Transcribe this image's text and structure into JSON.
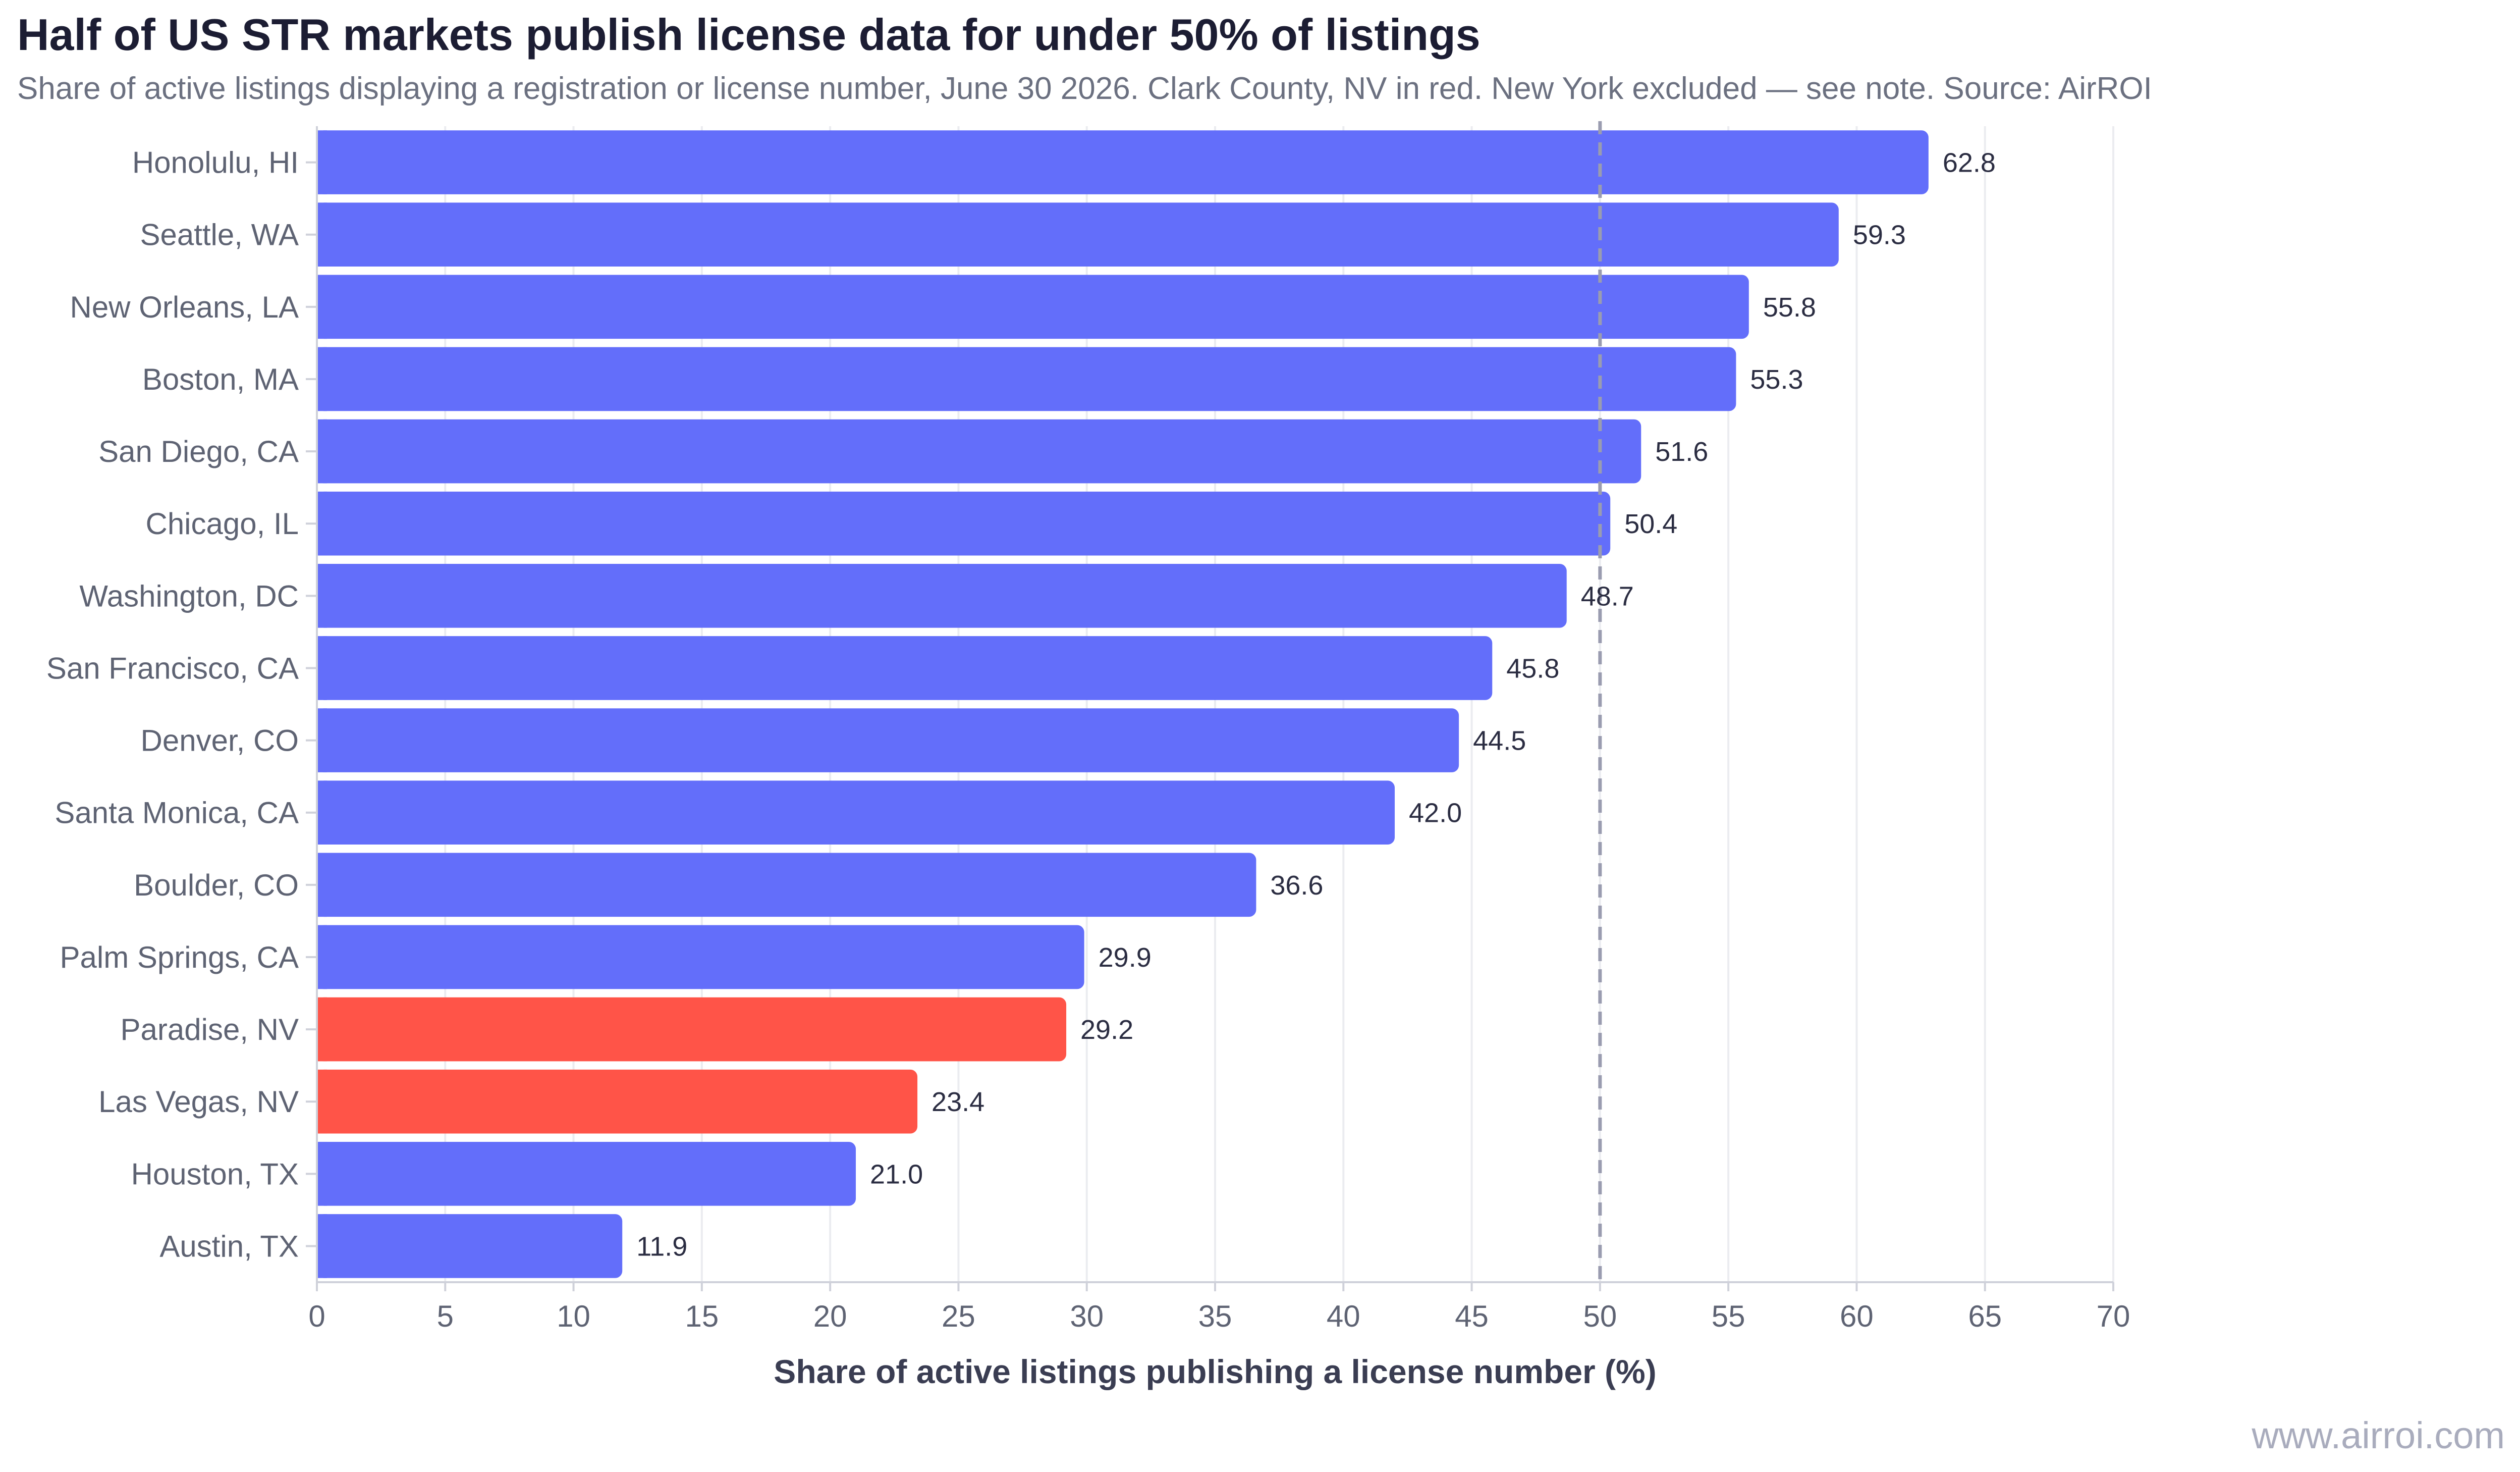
{
  "chart_data": {
    "type": "bar",
    "orientation": "horizontal",
    "title": "Half of US STR markets publish license data for under 50% of listings",
    "subtitle": "Share of active listings displaying a registration or license number, June 30 2026. Clark County, NV in red. New York excluded — see note. Source: AirROI",
    "xlabel": "Share of active listings publishing a license number (%)",
    "ylabel": "",
    "xlim": [
      0,
      70
    ],
    "xticks": [
      0,
      5,
      10,
      15,
      20,
      25,
      30,
      35,
      40,
      45,
      50,
      55,
      60,
      65,
      70
    ],
    "reference_line": {
      "value": 50,
      "style": "dashed",
      "color": "#9a9cb0"
    },
    "grid": "vertical",
    "colors": {
      "default": "#636efa",
      "highlight": "#ff5448"
    },
    "categories": [
      "Honolulu, HI",
      "Seattle, WA",
      "New Orleans, LA",
      "Boston, MA",
      "San Diego, CA",
      "Chicago, IL",
      "Washington, DC",
      "San Francisco, CA",
      "Denver, CO",
      "Santa Monica, CA",
      "Boulder, CO",
      "Palm Springs, CA",
      "Paradise, NV",
      "Las Vegas, NV",
      "Houston, TX",
      "Austin, TX"
    ],
    "values": [
      62.8,
      59.3,
      55.8,
      55.3,
      51.6,
      50.4,
      48.7,
      45.8,
      44.5,
      42.0,
      36.6,
      29.9,
      29.2,
      23.4,
      21.0,
      11.9
    ],
    "value_labels": [
      "62.8",
      "59.3",
      "55.8",
      "55.3",
      "51.6",
      "50.4",
      "48.7",
      "45.8",
      "44.5",
      "42.0",
      "36.6",
      "29.9",
      "29.2",
      "23.4",
      "21.0",
      "11.9"
    ],
    "highlighted": [
      "Paradise, NV",
      "Las Vegas, NV"
    ]
  },
  "footer": {
    "watermark": "www.airroi.com"
  }
}
